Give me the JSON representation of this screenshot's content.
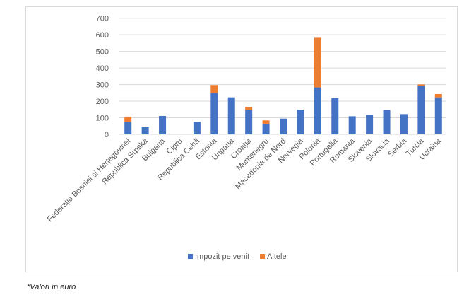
{
  "chart_data": {
    "type": "bar",
    "stacked": true,
    "title": "",
    "xlabel": "",
    "ylabel": "",
    "ylim": [
      0,
      700
    ],
    "yticks": [
      0,
      100,
      200,
      300,
      400,
      500,
      600,
      700
    ],
    "grid": true,
    "legend_position": "bottom",
    "categories": [
      "Federația Bosniei și Herțegovinei",
      "Republica Srpska",
      "Bulgaria",
      "Cipru",
      "Republica Cehă",
      "Estonia",
      "Ungaria",
      "Croația",
      "Muntenegru",
      "Macedonia de Nord",
      "Norvegia",
      "Polonia",
      "Portugalia",
      "Romania",
      "Slovenia",
      "Slovacia",
      "Serbia",
      "Turcia",
      "Ucraina"
    ],
    "series": [
      {
        "name": "Impozit pe venit",
        "color": "#4472c4",
        "values": [
          75,
          43,
          111,
          0,
          75,
          249,
          223,
          145,
          64,
          95,
          149,
          283,
          219,
          109,
          118,
          146,
          122,
          293,
          223
        ]
      },
      {
        "name": "Altele",
        "color": "#ed7d31",
        "values": [
          32,
          4,
          0,
          0,
          0,
          48,
          0,
          20,
          20,
          0,
          0,
          299,
          0,
          0,
          0,
          0,
          0,
          8,
          20
        ]
      }
    ]
  },
  "footnote": "*Valori în euro"
}
